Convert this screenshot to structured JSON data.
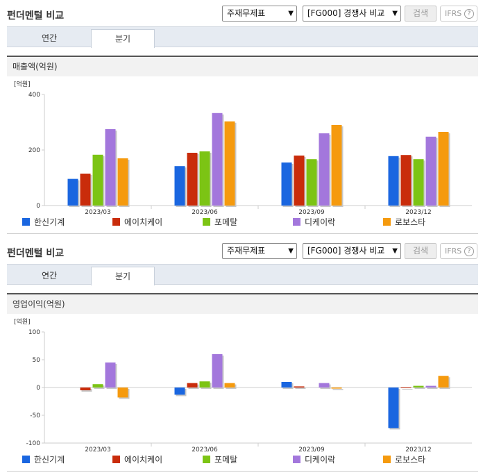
{
  "header": {
    "title": "펀더멘털 비교",
    "statement_select": "주재무제표",
    "compare_select": "[FG000] 경쟁사 비교",
    "search_button": "검색",
    "ifrs_label": "IFRS",
    "help_icon": "?"
  },
  "tabs": {
    "annual": "연간",
    "quarterly": "분기",
    "active": "quarterly"
  },
  "colors": {
    "series": [
      "#1a66e0",
      "#c92c0b",
      "#7cc414",
      "#a377dc",
      "#f59a0e"
    ]
  },
  "panels": [
    {
      "section_label": "매출액(억원)",
      "unit": "[억원]",
      "chart_data": {
        "type": "bar",
        "title": "매출액(억원)",
        "ylabel": "[억원]",
        "categories": [
          "2023/03",
          "2023/06",
          "2023/09",
          "2023/12"
        ],
        "yticks": [
          0,
          200,
          400
        ],
        "ylim": [
          0,
          400
        ],
        "grid": false,
        "legend": "bottom",
        "series": [
          {
            "name": "한신기계",
            "values": [
              96,
              142,
              155,
              178
            ]
          },
          {
            "name": "에이치케이",
            "values": [
              115,
              190,
              180,
              182
            ]
          },
          {
            "name": "포메탈",
            "values": [
              183,
              195,
              167,
              167
            ]
          },
          {
            "name": "디케이락",
            "values": [
              275,
              333,
              260,
              248
            ]
          },
          {
            "name": "로보스타",
            "values": [
              170,
              303,
              290,
              265
            ]
          }
        ]
      }
    },
    {
      "section_label": "영업이익(억원)",
      "unit": "[억원]",
      "chart_data": {
        "type": "bar",
        "title": "영업이익(억원)",
        "ylabel": "[억원]",
        "categories": [
          "2023/03",
          "2023/06",
          "2023/09",
          "2023/12"
        ],
        "yticks": [
          -100,
          -50,
          0,
          50,
          100
        ],
        "ylim": [
          -100,
          100
        ],
        "grid": false,
        "legend": "bottom",
        "series": [
          {
            "name": "한신기계",
            "values": [
              0,
              -13,
              10,
              -73
            ]
          },
          {
            "name": "에이치케이",
            "values": [
              -5,
              8,
              2,
              -1
            ]
          },
          {
            "name": "포메탈",
            "values": [
              6,
              11,
              0,
              3
            ]
          },
          {
            "name": "디케이락",
            "values": [
              45,
              60,
              8,
              3
            ]
          },
          {
            "name": "로보스타",
            "values": [
              -18,
              8,
              -2,
              21
            ]
          }
        ]
      }
    }
  ]
}
